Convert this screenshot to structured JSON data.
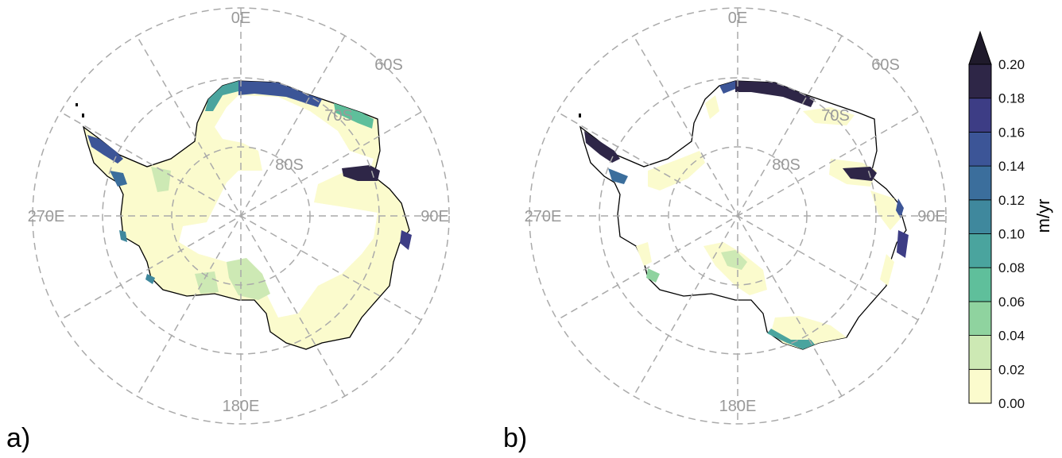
{
  "panels": [
    {
      "label": "a)",
      "grid_labels": {
        "lon_0": "0E",
        "lon_90": "90E",
        "lon_180": "180E",
        "lon_270": "270E",
        "lat_60": "60S",
        "lat_70": "70S",
        "lat_80": "80S"
      }
    },
    {
      "label": "b)",
      "grid_labels": {
        "lon_0": "0E",
        "lon_90": "90E",
        "lon_180": "180E",
        "lon_270": "270E",
        "lat_60": "60S",
        "lat_70": "70S",
        "lat_80": "80S"
      }
    }
  ],
  "colorbar": {
    "units": "m/yr",
    "extend": "max",
    "ticks": [
      "0.00",
      "0.02",
      "0.04",
      "0.06",
      "0.08",
      "0.10",
      "0.12",
      "0.14",
      "0.16",
      "0.18",
      "0.20"
    ],
    "colors": [
      "#fbfbcd",
      "#cde9b4",
      "#8fd39f",
      "#5fbf9b",
      "#4aa49e",
      "#3f889d",
      "#3b6e9c",
      "#3c5597",
      "#3d3d85",
      "#2e2647"
    ],
    "extend_color": "#1f1a2b"
  },
  "colors": {
    "grid": "#aaaaaa",
    "coast": "#000000",
    "land_fill": "#fbfbcd",
    "interior_white": "#ffffff"
  }
}
